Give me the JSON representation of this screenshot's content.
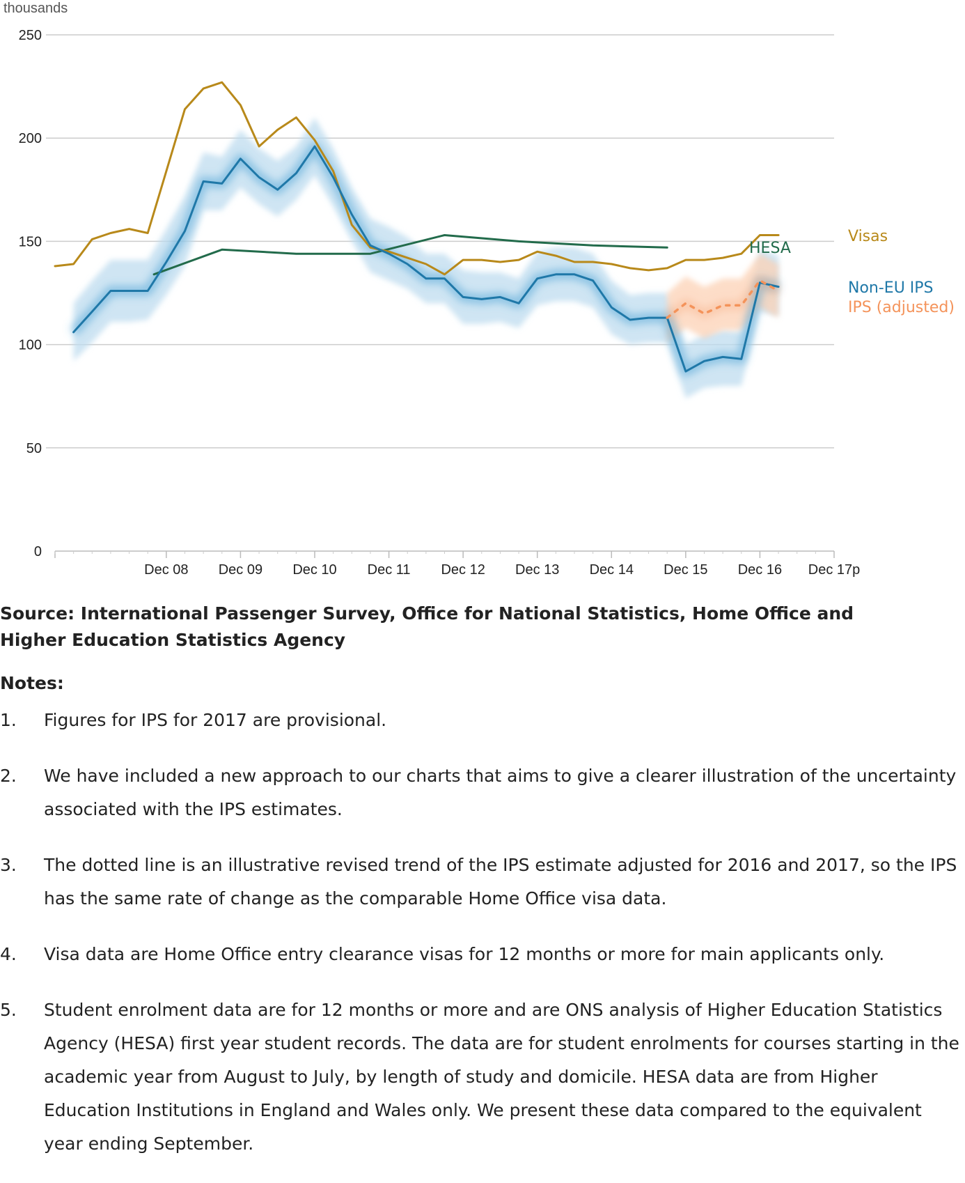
{
  "chart_data": {
    "type": "line",
    "ylabel": "thousands",
    "ylim": [
      0,
      250
    ],
    "yticks": [
      0,
      50,
      100,
      150,
      200,
      250
    ],
    "grid": true,
    "x_start": "2007-06",
    "x_end": "2017-12",
    "xticks": [
      {
        "label": "Dec 08",
        "date": "2008-12"
      },
      {
        "label": "Dec 09",
        "date": "2009-12"
      },
      {
        "label": "Dec 10",
        "date": "2010-12"
      },
      {
        "label": "Dec 11",
        "date": "2011-12"
      },
      {
        "label": "Dec 12",
        "date": "2012-12"
      },
      {
        "label": "Dec 13",
        "date": "2013-12"
      },
      {
        "label": "Dec 14",
        "date": "2014-12"
      },
      {
        "label": "Dec 15",
        "date": "2015-12"
      },
      {
        "label": "Dec 16",
        "date": "2016-12"
      },
      {
        "label": "Dec 17p",
        "date": "2017-12"
      }
    ],
    "series": [
      {
        "name": "Visas",
        "color": "#b8891a",
        "style": "solid",
        "points": [
          {
            "x": "2007-06",
            "y": 138
          },
          {
            "x": "2007-09",
            "y": 139
          },
          {
            "x": "2007-12",
            "y": 151
          },
          {
            "x": "2008-03",
            "y": 154
          },
          {
            "x": "2008-06",
            "y": 156
          },
          {
            "x": "2008-09",
            "y": 154
          },
          {
            "x": "2008-12",
            "y": 184
          },
          {
            "x": "2009-03",
            "y": 214
          },
          {
            "x": "2009-06",
            "y": 224
          },
          {
            "x": "2009-09",
            "y": 227
          },
          {
            "x": "2009-12",
            "y": 216
          },
          {
            "x": "2010-03",
            "y": 196
          },
          {
            "x": "2010-06",
            "y": 204
          },
          {
            "x": "2010-09",
            "y": 210
          },
          {
            "x": "2010-12",
            "y": 199
          },
          {
            "x": "2011-03",
            "y": 184
          },
          {
            "x": "2011-06",
            "y": 158
          },
          {
            "x": "2011-09",
            "y": 147
          },
          {
            "x": "2011-12",
            "y": 145
          },
          {
            "x": "2012-03",
            "y": 142
          },
          {
            "x": "2012-06",
            "y": 139
          },
          {
            "x": "2012-09",
            "y": 134
          },
          {
            "x": "2012-12",
            "y": 141
          },
          {
            "x": "2013-03",
            "y": 141
          },
          {
            "x": "2013-06",
            "y": 140
          },
          {
            "x": "2013-09",
            "y": 141
          },
          {
            "x": "2013-12",
            "y": 145
          },
          {
            "x": "2014-03",
            "y": 143
          },
          {
            "x": "2014-06",
            "y": 140
          },
          {
            "x": "2014-09",
            "y": 140
          },
          {
            "x": "2014-12",
            "y": 139
          },
          {
            "x": "2015-03",
            "y": 137
          },
          {
            "x": "2015-06",
            "y": 136
          },
          {
            "x": "2015-09",
            "y": 137
          },
          {
            "x": "2015-12",
            "y": 141
          },
          {
            "x": "2016-03",
            "y": 141
          },
          {
            "x": "2016-06",
            "y": 142
          },
          {
            "x": "2016-09",
            "y": 144
          },
          {
            "x": "2016-12",
            "y": 153
          },
          {
            "x": "2017-03",
            "y": 153
          }
        ]
      },
      {
        "name": "Non-EU IPS",
        "color": "#1f78a8",
        "style": "solid",
        "points": [
          {
            "x": "2007-09",
            "y": 106
          },
          {
            "x": "2007-12",
            "y": 116
          },
          {
            "x": "2008-03",
            "y": 126
          },
          {
            "x": "2008-06",
            "y": 126
          },
          {
            "x": "2008-09",
            "y": 126
          },
          {
            "x": "2008-12",
            "y": 140
          },
          {
            "x": "2009-03",
            "y": 155
          },
          {
            "x": "2009-06",
            "y": 179
          },
          {
            "x": "2009-09",
            "y": 178
          },
          {
            "x": "2009-12",
            "y": 190
          },
          {
            "x": "2010-03",
            "y": 181
          },
          {
            "x": "2010-06",
            "y": 175
          },
          {
            "x": "2010-09",
            "y": 183
          },
          {
            "x": "2010-12",
            "y": 196
          },
          {
            "x": "2011-03",
            "y": 181
          },
          {
            "x": "2011-06",
            "y": 163
          },
          {
            "x": "2011-09",
            "y": 148
          },
          {
            "x": "2011-12",
            "y": 144
          },
          {
            "x": "2012-03",
            "y": 139
          },
          {
            "x": "2012-06",
            "y": 132
          },
          {
            "x": "2012-09",
            "y": 132
          },
          {
            "x": "2012-12",
            "y": 123
          },
          {
            "x": "2013-03",
            "y": 122
          },
          {
            "x": "2013-06",
            "y": 123
          },
          {
            "x": "2013-09",
            "y": 120
          },
          {
            "x": "2013-12",
            "y": 132
          },
          {
            "x": "2014-03",
            "y": 134
          },
          {
            "x": "2014-06",
            "y": 134
          },
          {
            "x": "2014-09",
            "y": 131
          },
          {
            "x": "2014-12",
            "y": 118
          },
          {
            "x": "2015-03",
            "y": 112
          },
          {
            "x": "2015-06",
            "y": 113
          },
          {
            "x": "2015-09",
            "y": 113
          },
          {
            "x": "2015-12",
            "y": 87
          },
          {
            "x": "2016-03",
            "y": 92
          },
          {
            "x": "2016-06",
            "y": 94
          },
          {
            "x": "2016-09",
            "y": 93
          },
          {
            "x": "2016-12",
            "y": 130
          },
          {
            "x": "2017-03",
            "y": 128
          }
        ]
      },
      {
        "name": "HESA",
        "color": "#226b4b",
        "style": "solid",
        "points": [
          {
            "x": "2008-10",
            "y": 134
          },
          {
            "x": "2009-09",
            "y": 146
          },
          {
            "x": "2010-09",
            "y": 144
          },
          {
            "x": "2011-09",
            "y": 144
          },
          {
            "x": "2012-09",
            "y": 153
          },
          {
            "x": "2013-09",
            "y": 150
          },
          {
            "x": "2014-09",
            "y": 148
          },
          {
            "x": "2015-09",
            "y": 147
          }
        ]
      },
      {
        "name": "IPS (adjusted)",
        "color": "#f4935a",
        "style": "dotted",
        "points": [
          {
            "x": "2015-09",
            "y": 113
          },
          {
            "x": "2015-12",
            "y": 120
          },
          {
            "x": "2016-03",
            "y": 115
          },
          {
            "x": "2016-06",
            "y": 119
          },
          {
            "x": "2016-09",
            "y": 119
          },
          {
            "x": "2016-12",
            "y": 131
          },
          {
            "x": "2017-03",
            "y": 126
          }
        ]
      }
    ],
    "uncertainty_bands": [
      {
        "series": "Non-EU IPS",
        "color": "#bfdcef",
        "points": [
          {
            "x": "2007-09",
            "lo": 92,
            "hi": 120
          },
          {
            "x": "2007-12",
            "lo": 101,
            "hi": 131
          },
          {
            "x": "2008-03",
            "lo": 111,
            "hi": 141
          },
          {
            "x": "2008-06",
            "lo": 111,
            "hi": 141
          },
          {
            "x": "2008-09",
            "lo": 112,
            "hi": 141
          },
          {
            "x": "2008-12",
            "lo": 124,
            "hi": 156
          },
          {
            "x": "2009-03",
            "lo": 138,
            "hi": 172
          },
          {
            "x": "2009-06",
            "lo": 165,
            "hi": 193
          },
          {
            "x": "2009-09",
            "lo": 165,
            "hi": 191
          },
          {
            "x": "2009-12",
            "lo": 176,
            "hi": 204
          },
          {
            "x": "2010-03",
            "lo": 168,
            "hi": 195
          },
          {
            "x": "2010-06",
            "lo": 162,
            "hi": 189
          },
          {
            "x": "2010-09",
            "lo": 170,
            "hi": 196
          },
          {
            "x": "2010-12",
            "lo": 182,
            "hi": 210
          },
          {
            "x": "2011-03",
            "lo": 167,
            "hi": 195
          },
          {
            "x": "2011-06",
            "lo": 150,
            "hi": 176
          },
          {
            "x": "2011-09",
            "lo": 135,
            "hi": 161
          },
          {
            "x": "2011-12",
            "lo": 131,
            "hi": 157
          },
          {
            "x": "2012-03",
            "lo": 127,
            "hi": 152
          },
          {
            "x": "2012-06",
            "lo": 120,
            "hi": 144
          },
          {
            "x": "2012-09",
            "lo": 120,
            "hi": 144
          },
          {
            "x": "2012-12",
            "lo": 110,
            "hi": 136
          },
          {
            "x": "2013-03",
            "lo": 110,
            "hi": 135
          },
          {
            "x": "2013-06",
            "lo": 111,
            "hi": 135
          },
          {
            "x": "2013-09",
            "lo": 108,
            "hi": 132
          },
          {
            "x": "2013-12",
            "lo": 119,
            "hi": 145
          },
          {
            "x": "2014-03",
            "lo": 121,
            "hi": 147
          },
          {
            "x": "2014-06",
            "lo": 121,
            "hi": 147
          },
          {
            "x": "2014-09",
            "lo": 118,
            "hi": 144
          },
          {
            "x": "2014-12",
            "lo": 105,
            "hi": 131
          },
          {
            "x": "2015-03",
            "lo": 100,
            "hi": 124
          },
          {
            "x": "2015-06",
            "lo": 101,
            "hi": 125
          },
          {
            "x": "2015-09",
            "lo": 101,
            "hi": 125
          },
          {
            "x": "2015-12",
            "lo": 74,
            "hi": 100
          },
          {
            "x": "2016-03",
            "lo": 79,
            "hi": 105
          },
          {
            "x": "2016-06",
            "lo": 80,
            "hi": 107
          },
          {
            "x": "2016-09",
            "lo": 80,
            "hi": 106
          },
          {
            "x": "2016-12",
            "lo": 116,
            "hi": 146
          },
          {
            "x": "2017-03",
            "lo": 114,
            "hi": 143
          }
        ]
      },
      {
        "series": "IPS (adjusted)",
        "color": "#fcd2b6",
        "points": [
          {
            "x": "2015-09",
            "lo": 101,
            "hi": 125
          },
          {
            "x": "2015-12",
            "lo": 108,
            "hi": 133
          },
          {
            "x": "2016-03",
            "lo": 103,
            "hi": 128
          },
          {
            "x": "2016-06",
            "lo": 107,
            "hi": 132
          },
          {
            "x": "2016-09",
            "lo": 107,
            "hi": 132
          },
          {
            "x": "2016-12",
            "lo": 118,
            "hi": 144
          },
          {
            "x": "2017-03",
            "lo": 113,
            "hi": 139
          }
        ]
      }
    ]
  },
  "footer": {
    "source": "Source: International Passenger Survey, Office for National Statistics, Home Office and Higher Education Statistics Agency",
    "notes_title": "Notes:",
    "notes": [
      {
        "num": "1.",
        "text": "Figures for IPS for 2017 are provisional."
      },
      {
        "num": "2.",
        "text": "We have included a new approach to our charts that aims to give a clearer illustration of the uncertainty associated with the IPS estimates."
      },
      {
        "num": "3.",
        "text": "The dotted line is an illustrative revised trend of the IPS estimate adjusted for 2016 and 2017, so the IPS has the same rate of change as the comparable Home Office visa data."
      },
      {
        "num": "4.",
        "text": "Visa data are Home Office entry clearance visas for 12 months or more for main applicants only."
      },
      {
        "num": "5.",
        "text": "Student enrolment data are for 12 months or more and are ONS analysis of Higher Education Statistics Agency (HESA) first year student records. The data are for student enrolments for courses starting in the academic year from August to July, by length of study and domicile. HESA data are from Higher Education Institutions in England and Wales only. We present these data compared to the equivalent year ending September."
      }
    ]
  }
}
